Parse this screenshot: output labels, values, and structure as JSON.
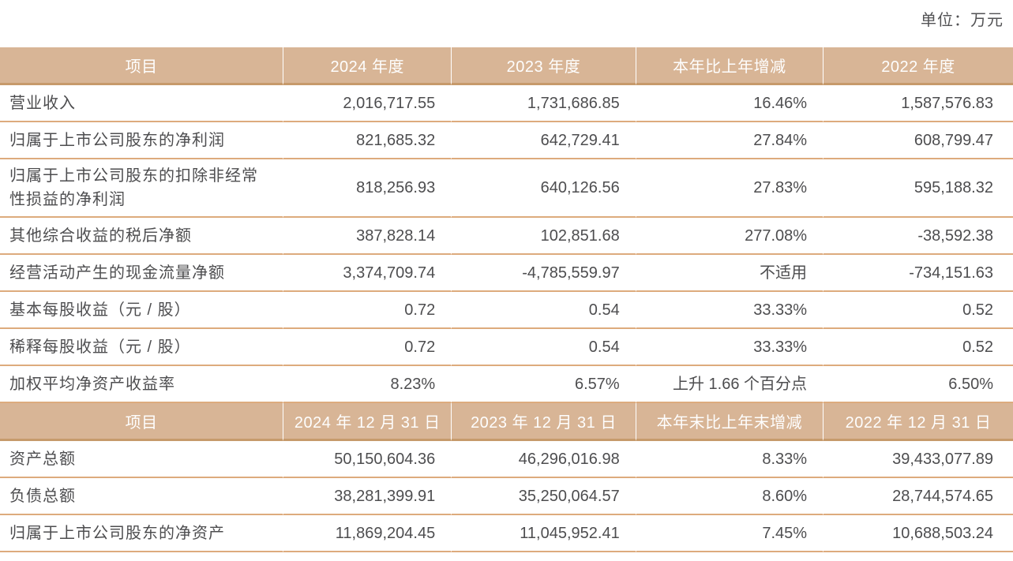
{
  "page": {
    "unit_label": "单位：万元"
  },
  "colors": {
    "header_bg": "#d8b596",
    "header_text": "#fefefe",
    "header_border": "#c69a6b",
    "row_border": "#ddab7d",
    "body_text": "#4d4d4f"
  },
  "annual_table": {
    "headers": [
      "项目",
      "2024 年度",
      "2023 年度",
      "本年比上年增减",
      "2022 年度"
    ],
    "rows": [
      [
        "营业收入",
        "2,016,717.55",
        "1,731,686.85",
        "16.46%",
        "1,587,576.83"
      ],
      [
        "归属于上市公司股东的净利润",
        "821,685.32",
        "642,729.41",
        "27.84%",
        "608,799.47"
      ],
      [
        "归属于上市公司股东的扣除非经常性损益的净利润",
        "818,256.93",
        "640,126.56",
        "27.83%",
        "595,188.32"
      ],
      [
        "其他综合收益的税后净额",
        "387,828.14",
        "102,851.68",
        "277.08%",
        "-38,592.38"
      ],
      [
        "经营活动产生的现金流量净额",
        "3,374,709.74",
        "-4,785,559.97",
        "不适用",
        "-734,151.63"
      ],
      [
        "基本每股收益（元 / 股）",
        "0.72",
        "0.54",
        "33.33%",
        "0.52"
      ],
      [
        "稀释每股收益（元 / 股）",
        "0.72",
        "0.54",
        "33.33%",
        "0.52"
      ],
      [
        "加权平均净资产收益率",
        "8.23%",
        "6.57%",
        "上升 1.66 个百分点",
        "6.50%"
      ]
    ]
  },
  "balance_table": {
    "headers": [
      "项目",
      "2024 年 12 月 31 日",
      "2023 年 12 月 31 日",
      "本年末比上年末增减",
      "2022 年 12 月 31 日"
    ],
    "rows": [
      [
        "资产总额",
        "50,150,604.36",
        "46,296,016.98",
        "8.33%",
        "39,433,077.89"
      ],
      [
        "负债总额",
        "38,281,399.91",
        "35,250,064.57",
        "8.60%",
        "28,744,574.65"
      ],
      [
        "归属于上市公司股东的净资产",
        "11,869,204.45",
        "11,045,952.41",
        "7.45%",
        "10,688,503.24"
      ]
    ]
  }
}
